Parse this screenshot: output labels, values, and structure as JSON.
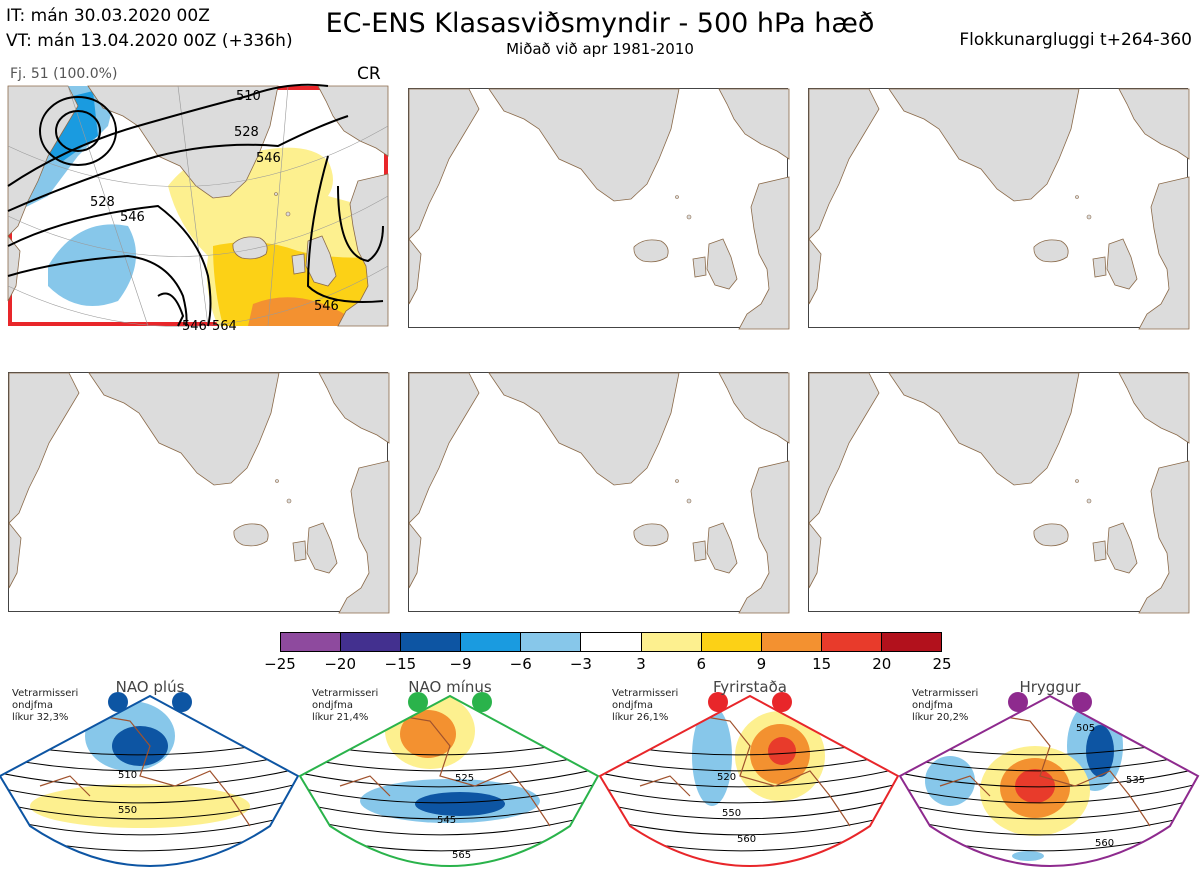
{
  "header": {
    "it_line": "IT: mán 30.03.2020 00Z",
    "vt_line": "VT: mán 13.04.2020 00Z  (+336h)",
    "title": "EC-ENS Klasasviðsmyndir - 500 hPa hæð",
    "subtitle": "Miðað við apr 1981-2010",
    "window": "Flokkunargluggi t+264-360"
  },
  "selected_panel": {
    "member_label": "Fj. 51 (100.0%)",
    "class_code": "CR",
    "contour_labels": [
      "510",
      "528",
      "546",
      "528",
      "546",
      "546",
      "546",
      "564"
    ]
  },
  "colorbar": {
    "ticks": [
      "−25",
      "−20",
      "−15",
      "−9",
      "−6",
      "−3",
      "3",
      "6",
      "9",
      "15",
      "20",
      "25"
    ],
    "colors": [
      "#8e4a9e",
      "#43308f",
      "#0d55a3",
      "#1a9be0",
      "#87c7ea",
      "#ffffff",
      "#fdf08f",
      "#fcd116",
      "#f39130",
      "#e83b2b",
      "#b2111c"
    ]
  },
  "regimes": [
    {
      "name": "NAO plús",
      "desc": "Vetrarmisseri\nondjfma\nlíkur 32,3%",
      "color": "#0d55a3",
      "labels": [
        "510",
        "550"
      ]
    },
    {
      "name": "NAO mínus",
      "desc": "Vetrarmisseri\nondjfma\nlíkur 21,4%",
      "color": "#2ab34b",
      "labels": [
        "525",
        "545",
        "565"
      ]
    },
    {
      "name": "Fyrirstaða",
      "desc": "Vetrarmisseri\nondjfma\nlíkur 26,1%",
      "color": "#e8262a",
      "labels": [
        "520",
        "550",
        "560"
      ]
    },
    {
      "name": "Hryggur",
      "desc": "Vetrarmisseri\nondjfma\nlíkur 20,2%",
      "color": "#8e2a8e",
      "labels": [
        "505",
        "535",
        "560"
      ]
    }
  ]
}
